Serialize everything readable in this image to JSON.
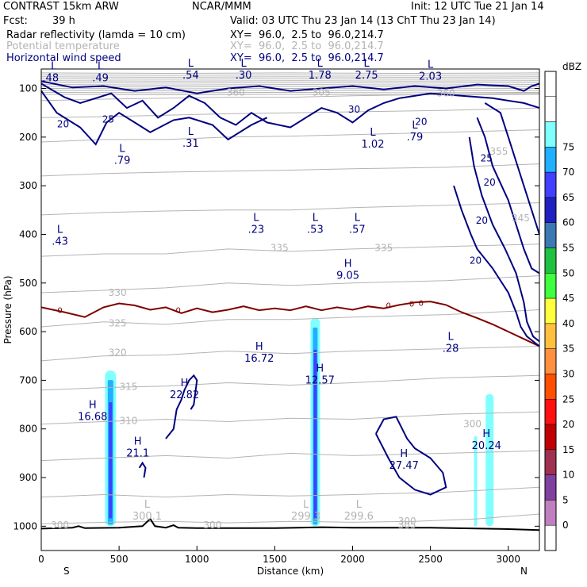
{
  "header": {
    "model": "CONTRAST 15km ARW",
    "org": "NCAR/MMM",
    "init": "Init: 12 UTC Tue 21 Jan 14",
    "fcst_label": "Fcst:",
    "fcst_value": "39 h",
    "valid": "Valid: 03 UTC Thu 23 Jan 14 (13 ChT Thu 23 Jan 14)",
    "fields": [
      {
        "name": "Radar reflectivity (lamda = 10 cm)",
        "xy": "XY=  96.0,  2.5 to  96.0,214.7",
        "color": "#000000"
      },
      {
        "name": "Potential temperature",
        "xy": "XY=  96.0,  2.5 to  96.0,214.7",
        "color": "#b4b4b4"
      },
      {
        "name": "Horizontal wind speed",
        "xy": "XY=  96.0,  2.5 to  96.0,214.7",
        "color": "#000080"
      }
    ]
  },
  "chart_data": {
    "type": "cross-section",
    "xlabel": "Distance (km)",
    "ylabel": "Pressure (hPa)",
    "xlim": [
      0,
      3200
    ],
    "ylim": [
      1050,
      60
    ],
    "x_ticks": [
      0,
      500,
      1000,
      1500,
      2000,
      2500,
      3000
    ],
    "y_ticks": [
      100,
      200,
      300,
      400,
      500,
      600,
      700,
      800,
      900,
      1000
    ],
    "x_end_labels": {
      "left": "S",
      "right": "N"
    },
    "colorbar": {
      "unit": "dBZ",
      "levels": [
        0,
        5,
        10,
        15,
        20,
        25,
        30,
        35,
        40,
        45,
        50,
        55,
        60,
        65,
        70,
        75
      ],
      "colors": [
        "#ffffff",
        "#ffffff",
        "#80ffff",
        "#20b0ff",
        "#4040ff",
        "#2020c0",
        "#3c78b4",
        "#20c040",
        "#40ff40",
        "#ffff40",
        "#ffc040",
        "#ff9040",
        "#ff5000",
        "#ff1010",
        "#c00000",
        "#a03050",
        "#8040a0",
        "#c080c0",
        "#ffffff"
      ]
    },
    "wind_speed_labels": [
      "20",
      "25",
      "30",
      "20",
      "25",
      "20",
      "20",
      "20"
    ],
    "theta_labels": [
      "300",
      "300",
      "305",
      "310",
      "315",
      "320",
      "325",
      "330",
      "335",
      "335",
      "345",
      "355",
      "360",
      "360",
      "305",
      "300",
      "300"
    ],
    "freezing_labels": [
      "0",
      "0",
      "0",
      "0",
      "0"
    ],
    "extrema": [
      {
        "type": "L",
        "value": ".48"
      },
      {
        "type": "L",
        "value": ".49"
      },
      {
        "type": "L",
        "value": ".54"
      },
      {
        "type": "L",
        "value": ".30"
      },
      {
        "type": "L",
        "value": "1.78"
      },
      {
        "type": "L",
        "value": "2.75"
      },
      {
        "type": "L",
        "value": "2.03"
      },
      {
        "type": "L",
        "value": ".31"
      },
      {
        "type": "L",
        "value": "1.02"
      },
      {
        "type": "L",
        "value": ".79"
      },
      {
        "type": "L",
        "value": ".79"
      },
      {
        "type": "L",
        "value": ".23"
      },
      {
        "type": "L",
        "value": ".53"
      },
      {
        "type": "L",
        "value": ".57"
      },
      {
        "type": "L",
        "value": ".43"
      },
      {
        "type": "H",
        "value": "9.05"
      },
      {
        "type": "H",
        "value": "16.72"
      },
      {
        "type": "L",
        "value": ".28"
      },
      {
        "type": "H",
        "value": "12.57"
      },
      {
        "type": "H",
        "value": "22.82"
      },
      {
        "type": "H",
        "value": "16.68"
      },
      {
        "type": "H",
        "value": "21.1"
      },
      {
        "type": "H",
        "value": "27.47"
      },
      {
        "type": "H",
        "value": "20.24"
      },
      {
        "type": "L",
        "value": "300.1"
      },
      {
        "type": "L",
        "value": "299.3"
      },
      {
        "type": "L",
        "value": "299.6"
      }
    ]
  }
}
